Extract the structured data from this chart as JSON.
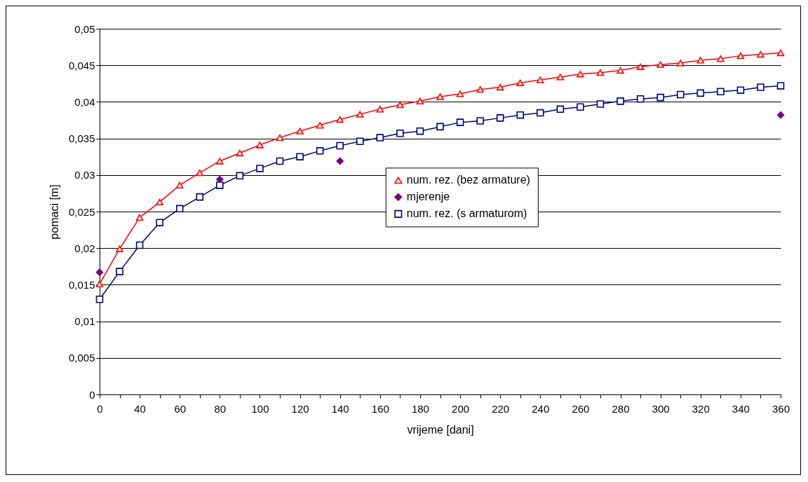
{
  "chart_data": {
    "type": "line",
    "xlabel": "vrijeme [dani]",
    "ylabel": "pomaci [m]",
    "categories": [
      "0",
      null,
      "40",
      null,
      "60",
      null,
      "80",
      null,
      "100",
      null,
      "120",
      null,
      "140",
      null,
      "160",
      null,
      "180",
      null,
      "200",
      null,
      "220",
      null,
      "240",
      null,
      "260",
      null,
      "280",
      null,
      "300",
      null,
      "320",
      null,
      "340",
      null,
      "360"
    ],
    "series": [
      {
        "name": "num. rez. (bez armature)",
        "color": "#ff0000",
        "marker": "triangle",
        "values": [
          0.0151,
          0.0199,
          0.0242,
          0.0263,
          0.0286,
          0.0303,
          0.0319,
          0.033,
          0.0341,
          0.0351,
          0.036,
          0.0368,
          0.0376,
          0.0383,
          0.039,
          0.0396,
          0.0401,
          0.0407,
          0.0411,
          0.0417,
          0.042,
          0.0426,
          0.043,
          0.0434,
          0.0438,
          0.044,
          0.0443,
          0.0448,
          0.0451,
          0.0453,
          0.0457,
          0.0459,
          0.0463,
          0.0465,
          0.0467
        ]
      },
      {
        "name": "mjerenje",
        "type": "scatter",
        "color": "#800080",
        "marker": "diamond",
        "x": [
          "0",
          "80",
          "140",
          "360"
        ],
        "values": [
          0.0167,
          0.0294,
          0.0319,
          0.0382
        ]
      },
      {
        "name": "num. rez. (s armaturom)",
        "color": "#000080",
        "marker": "square",
        "values": [
          0.013,
          0.0168,
          0.0204,
          0.0235,
          0.0254,
          0.027,
          0.0286,
          0.0299,
          0.0309,
          0.0319,
          0.0325,
          0.0333,
          0.034,
          0.0346,
          0.0351,
          0.0357,
          0.036,
          0.0366,
          0.0372,
          0.0374,
          0.0378,
          0.0382,
          0.0385,
          0.039,
          0.0393,
          0.0397,
          0.0401,
          0.0404,
          0.0406,
          0.041,
          0.0412,
          0.0414,
          0.0416,
          0.042,
          0.0422
        ]
      }
    ],
    "ylim": [
      0,
      0.05
    ],
    "yticks": [
      0,
      {
        "value": 0.005,
        "label": "0,005"
      },
      {
        "value": 0.01,
        "label": "0,01"
      },
      {
        "value": 0.015,
        "label": "0,015"
      },
      {
        "value": 0.02,
        "label": "0,02"
      },
      {
        "value": 0.025,
        "label": "0,025"
      },
      {
        "value": 0.03,
        "label": "0,03"
      },
      {
        "value": 0.035,
        "label": "0,035"
      },
      {
        "value": 0.04,
        "label": "0,04"
      },
      {
        "value": 0.045,
        "label": "0,045"
      },
      {
        "value": 0.05,
        "label": "0,05"
      }
    ],
    "grid": "y",
    "legend": "center",
    "line_style": "solid"
  }
}
